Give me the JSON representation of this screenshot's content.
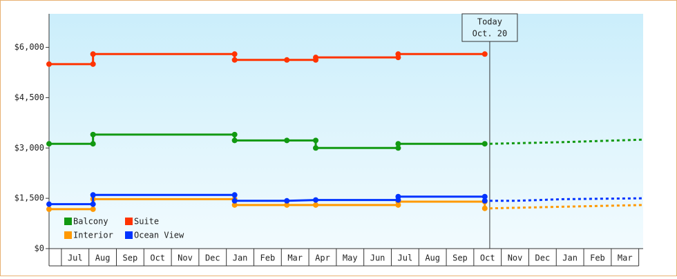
{
  "chart_data": {
    "type": "step-line",
    "categories": [
      "Jul",
      "Aug",
      "Sep",
      "Oct",
      "Nov",
      "Dec",
      "Jan",
      "Feb",
      "Mar",
      "Apr",
      "May",
      "Jun",
      "Jul",
      "Aug",
      "Sep",
      "Oct",
      "Nov",
      "Dec",
      "Jan",
      "Feb",
      "Mar"
    ],
    "xlim": [
      -0.45,
      21.16
    ],
    "ylim": [
      0,
      7000
    ],
    "yticks": [
      {
        "value": 0,
        "label": "$0"
      },
      {
        "value": 1500,
        "label": "$1,500"
      },
      {
        "value": 3000,
        "label": "$3,000"
      },
      {
        "value": 4500,
        "label": "$4,500"
      },
      {
        "value": 6000,
        "label": "$6,000"
      }
    ],
    "annotation": {
      "x": 15.58,
      "lines": [
        "Today",
        "Oct. 20"
      ]
    },
    "series": [
      {
        "name": "Balcony",
        "color": "#119911",
        "x": [
          -0.45,
          1.15,
          1.15,
          6.3,
          6.3,
          8.2,
          9.25,
          9.25,
          12.25,
          12.25,
          15.4
        ],
        "values": [
          3125,
          3125,
          3400,
          3400,
          3225,
          3225,
          3225,
          3000,
          3000,
          3125,
          3125
        ],
        "forecast": {
          "x": [
            15.58,
            18.3,
            21.16
          ],
          "values": [
            3125,
            3175,
            3250
          ]
        }
      },
      {
        "name": "Suite",
        "color": "#ff3300",
        "x": [
          -0.45,
          1.15,
          1.15,
          6.3,
          6.3,
          8.2,
          9.25,
          9.25,
          12.25,
          12.25,
          15.4
        ],
        "values": [
          5500,
          5500,
          5800,
          5800,
          5625,
          5625,
          5625,
          5700,
          5700,
          5800,
          5800
        ]
      },
      {
        "name": "Interior",
        "color": "#ff9900",
        "x": [
          -0.45,
          1.15,
          1.15,
          6.3,
          6.3,
          8.2,
          9.25,
          12.25,
          12.25,
          15.4,
          15.4
        ],
        "values": [
          1175,
          1175,
          1475,
          1475,
          1300,
          1300,
          1300,
          1300,
          1400,
          1400,
          1200
        ],
        "forecast": {
          "x": [
            15.58,
            18.3,
            21.16
          ],
          "values": [
            1200,
            1250,
            1300
          ]
        }
      },
      {
        "name": "Ocean View",
        "color": "#0033ff",
        "x": [
          -0.45,
          1.15,
          1.15,
          6.3,
          6.3,
          8.2,
          9.25,
          12.25,
          12.25,
          15.4,
          15.4
        ],
        "values": [
          1325,
          1325,
          1600,
          1600,
          1425,
          1425,
          1450,
          1450,
          1550,
          1550,
          1425
        ],
        "forecast": {
          "x": [
            15.58,
            16.5,
            18.3,
            21.16
          ],
          "values": [
            1425,
            1425,
            1475,
            1500
          ]
        }
      }
    ]
  }
}
